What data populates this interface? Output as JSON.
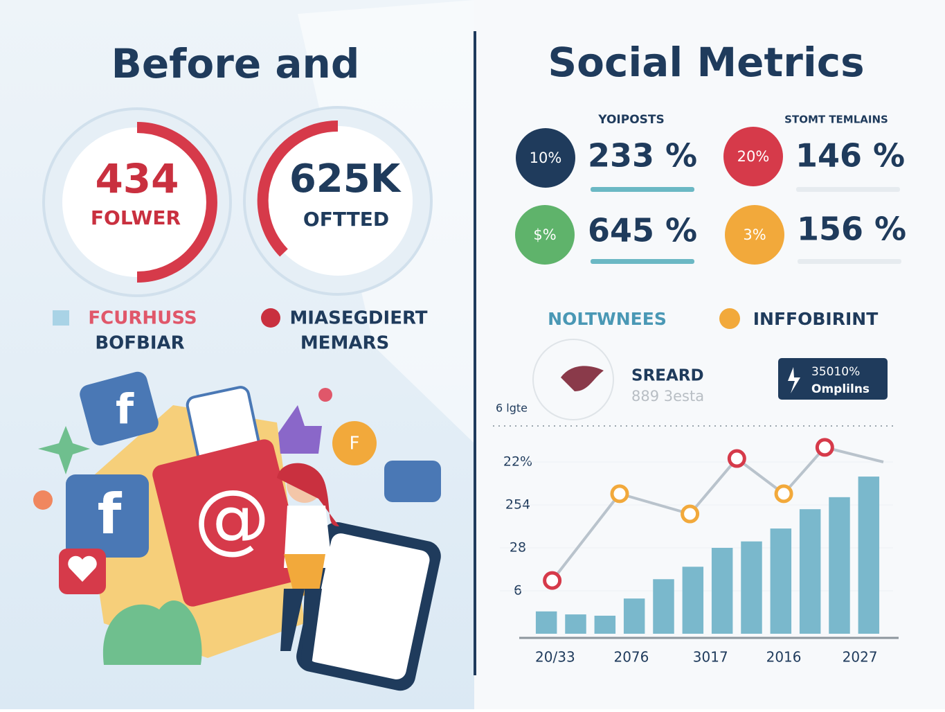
{
  "left": {
    "title": "Before and",
    "rings": [
      {
        "value": "434",
        "label": "FOLWER"
      },
      {
        "value": "625K",
        "label": "OFTTED"
      }
    ],
    "legend": [
      {
        "line1": "FCURHUSS",
        "line2": "BOFBIAR"
      },
      {
        "line1": "MIASEGDIERT",
        "line2": "MEMARS"
      }
    ]
  },
  "right": {
    "title": "Social Metrics",
    "columns": [
      "YOIPOSTS",
      "STOMT TEMLAINS"
    ],
    "metrics": [
      {
        "badge": "10%",
        "value": "233 %"
      },
      {
        "badge": "20%",
        "value": "146 %"
      },
      {
        "badge": "$%",
        "value": "645 %"
      },
      {
        "badge": "3%",
        "value": "156 %"
      }
    ],
    "legend": [
      "NOLTWNEES",
      "INFFOBIRINT"
    ],
    "share": {
      "title": "SREARD",
      "subtitle": "889 3esta"
    },
    "callout": {
      "line1": "35010%",
      "line2": "Omplilns"
    }
  },
  "chart_data": {
    "type": "bar",
    "y_label": "6 lgte",
    "x": [
      0.5,
      1.5,
      2.5,
      3.5,
      4.5,
      5.5,
      6.5,
      7.5,
      8.5,
      9.5,
      10.5,
      11.5
    ],
    "values": [
      0.52,
      0.45,
      0.42,
      0.82,
      1.27,
      1.56,
      2.0,
      2.15,
      2.45,
      2.9,
      3.18,
      3.66
    ],
    "color": "#7ab8cc",
    "line": {
      "x": [
        0.7,
        3,
        5.4,
        7,
        8.6,
        10,
        12
      ],
      "values": [
        1.24,
        3.26,
        2.79,
        4.08,
        3.26,
        4.34,
        4.0
      ],
      "color": "#b9c3cc",
      "marker_colors": [
        "#d63a4a",
        "#f2a93b",
        "#f2a93b",
        "#d63a4a",
        "#f2a93b",
        "#d63a4a",
        null
      ]
    },
    "xlim": [
      0,
      12
    ],
    "ylim": [
      0,
      4.85
    ],
    "xticks": [
      {
        "value": 0.8,
        "label": "20/33"
      },
      {
        "value": 3.4,
        "label": "2076"
      },
      {
        "value": 6.1,
        "label": "3017"
      },
      {
        "value": 8.6,
        "label": "2016"
      },
      {
        "value": 11.2,
        "label": "2027"
      }
    ],
    "yticks": [
      {
        "value": 1,
        "label": "6"
      },
      {
        "value": 2,
        "label": "28"
      },
      {
        "value": 3,
        "label": "254"
      },
      {
        "value": 4,
        "label": "22%"
      }
    ],
    "grid": true
  }
}
